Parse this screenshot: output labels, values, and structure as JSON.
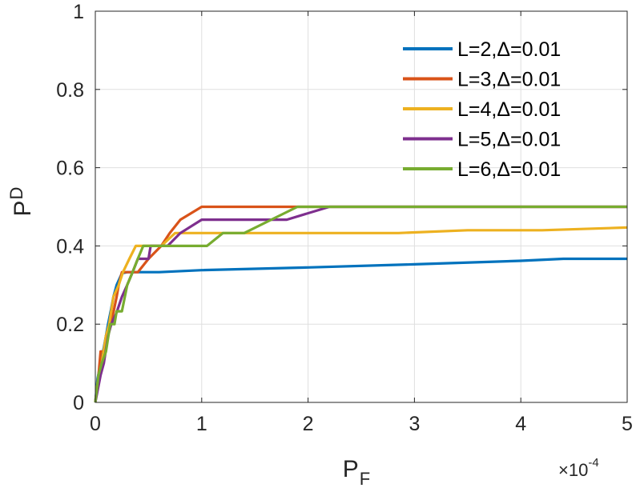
{
  "chart_data": {
    "type": "line",
    "xlabel": {
      "main": "P",
      "sub": "F"
    },
    "ylabel": {
      "main": "P",
      "sub": "D"
    },
    "x_multiplier": {
      "base": "×10",
      "exp": "-4"
    },
    "xlim": [
      0,
      5
    ],
    "ylim": [
      0,
      1
    ],
    "x_ticks": [
      0,
      1,
      2,
      3,
      4,
      5
    ],
    "x_tick_labels": [
      "0",
      "1",
      "2",
      "3",
      "4",
      "5"
    ],
    "y_ticks": [
      0,
      0.2,
      0.4,
      0.6,
      0.8,
      1
    ],
    "y_tick_labels": [
      "0",
      "0.2",
      "0.4",
      "0.6",
      "0.8",
      "1"
    ],
    "grid": true,
    "legend_position": "top-right",
    "series": [
      {
        "name": "L=2,Δ=0.01",
        "color": "#0072BD",
        "points": [
          [
            0,
            0
          ],
          [
            0.02,
            0.06
          ],
          [
            0.05,
            0.1
          ],
          [
            0.08,
            0.14
          ],
          [
            0.1,
            0.17
          ],
          [
            0.12,
            0.2
          ],
          [
            0.15,
            0.24
          ],
          [
            0.17,
            0.27
          ],
          [
            0.2,
            0.3
          ],
          [
            0.25,
            0.33
          ],
          [
            0.3,
            0.333
          ],
          [
            0.6,
            0.333
          ],
          [
            1.0,
            0.338
          ],
          [
            2.0,
            0.345
          ],
          [
            3.0,
            0.353
          ],
          [
            4.0,
            0.362
          ],
          [
            4.4,
            0.367
          ],
          [
            5.0,
            0.367
          ]
        ]
      },
      {
        "name": "L=3,Δ=0.01",
        "color": "#D95319",
        "points": [
          [
            0,
            0
          ],
          [
            0.03,
            0.07
          ],
          [
            0.05,
            0.13
          ],
          [
            0.08,
            0.13
          ],
          [
            0.1,
            0.17
          ],
          [
            0.14,
            0.2
          ],
          [
            0.17,
            0.23
          ],
          [
            0.2,
            0.27
          ],
          [
            0.22,
            0.3
          ],
          [
            0.25,
            0.333
          ],
          [
            0.4,
            0.333
          ],
          [
            0.5,
            0.367
          ],
          [
            0.62,
            0.4
          ],
          [
            0.7,
            0.433
          ],
          [
            0.8,
            0.467
          ],
          [
            1.0,
            0.5
          ],
          [
            5.0,
            0.5
          ]
        ]
      },
      {
        "name": "L=4,Δ=0.01",
        "color": "#EDB120",
        "points": [
          [
            0,
            0
          ],
          [
            0.03,
            0.07
          ],
          [
            0.06,
            0.1
          ],
          [
            0.1,
            0.17
          ],
          [
            0.13,
            0.2
          ],
          [
            0.17,
            0.27
          ],
          [
            0.22,
            0.3
          ],
          [
            0.26,
            0.333
          ],
          [
            0.32,
            0.367
          ],
          [
            0.38,
            0.4
          ],
          [
            0.45,
            0.4
          ],
          [
            0.62,
            0.4
          ],
          [
            0.75,
            0.433
          ],
          [
            2.85,
            0.433
          ],
          [
            3.5,
            0.44
          ],
          [
            4.2,
            0.44
          ],
          [
            5.0,
            0.447
          ]
        ]
      },
      {
        "name": "L=5,Δ=0.01",
        "color": "#7E2F8E",
        "points": [
          [
            0,
            0
          ],
          [
            0.05,
            0.07
          ],
          [
            0.08,
            0.1
          ],
          [
            0.12,
            0.17
          ],
          [
            0.15,
            0.2
          ],
          [
            0.2,
            0.23
          ],
          [
            0.25,
            0.27
          ],
          [
            0.3,
            0.3
          ],
          [
            0.35,
            0.333
          ],
          [
            0.4,
            0.367
          ],
          [
            0.5,
            0.367
          ],
          [
            0.52,
            0.4
          ],
          [
            0.68,
            0.4
          ],
          [
            0.8,
            0.433
          ],
          [
            1.0,
            0.467
          ],
          [
            1.4,
            0.467
          ],
          [
            1.8,
            0.467
          ],
          [
            2.2,
            0.5
          ],
          [
            5.0,
            0.5
          ]
        ]
      },
      {
        "name": "L=6,Δ=0.01",
        "color": "#77AC30",
        "points": [
          [
            0,
            0
          ],
          [
            0.03,
            0.07
          ],
          [
            0.06,
            0.1
          ],
          [
            0.1,
            0.13
          ],
          [
            0.14,
            0.2
          ],
          [
            0.18,
            0.2
          ],
          [
            0.2,
            0.233
          ],
          [
            0.25,
            0.233
          ],
          [
            0.3,
            0.3
          ],
          [
            0.35,
            0.333
          ],
          [
            0.4,
            0.367
          ],
          [
            0.45,
            0.4
          ],
          [
            1.05,
            0.4
          ],
          [
            1.2,
            0.433
          ],
          [
            1.4,
            0.433
          ],
          [
            1.9,
            0.5
          ],
          [
            5.0,
            0.5
          ]
        ]
      }
    ]
  }
}
